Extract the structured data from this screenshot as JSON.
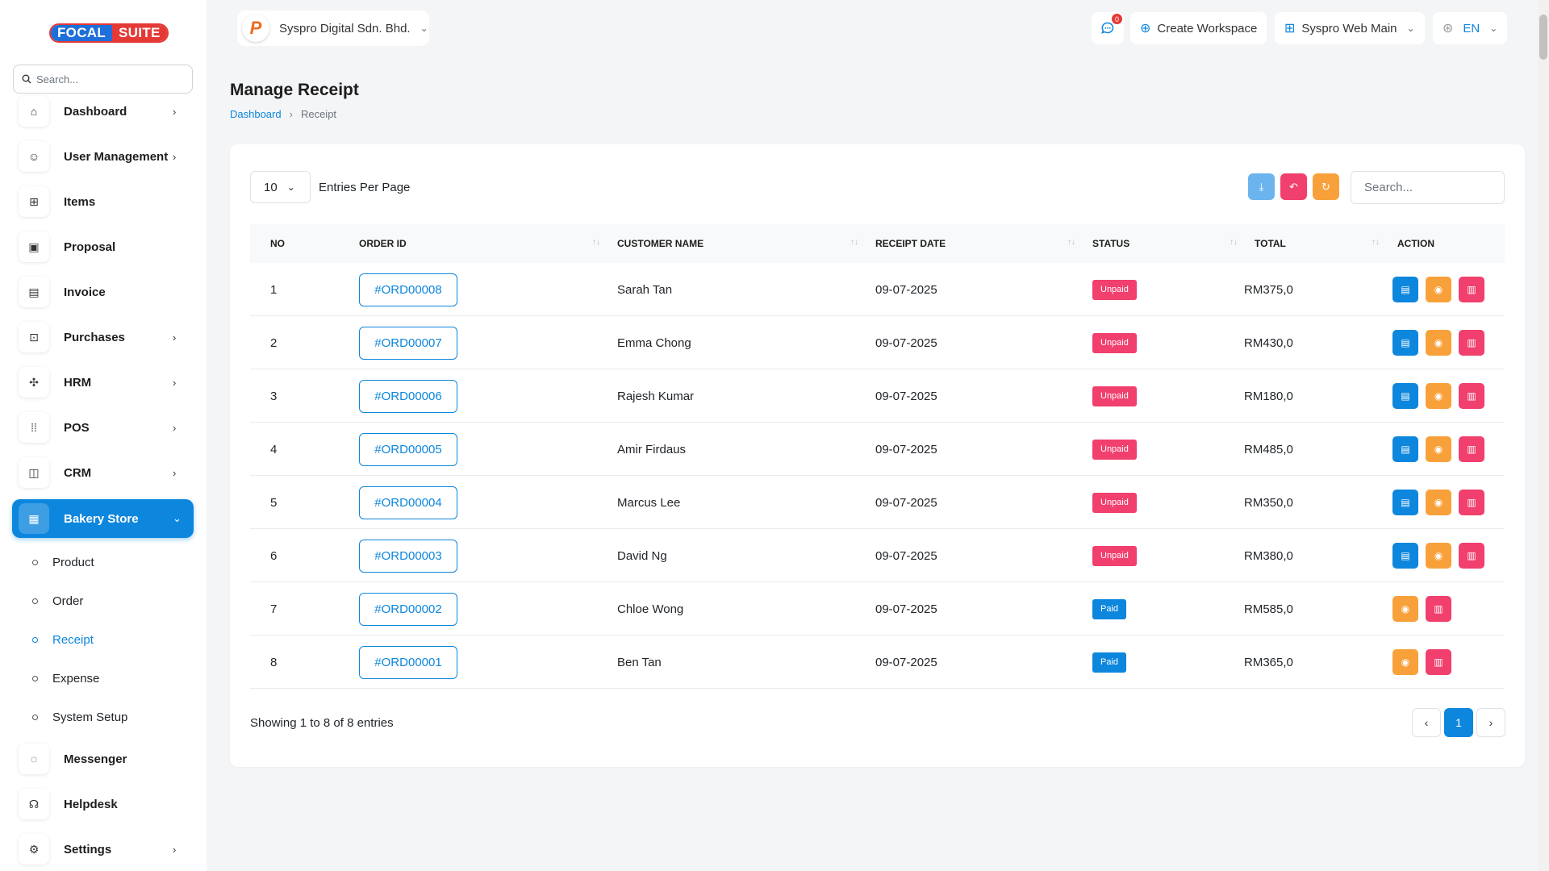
{
  "brand": {
    "part1": "FOCAL",
    "part2": "SUITE"
  },
  "sidebar": {
    "search_placeholder": "Search...",
    "items": [
      {
        "label": "Dashboard",
        "icon": "home-icon",
        "glyph": "⌂",
        "chevron": true
      },
      {
        "label": "User Management",
        "icon": "users-icon",
        "glyph": "☺",
        "chevron": true
      },
      {
        "label": "Items",
        "icon": "cart-icon",
        "glyph": "⊞",
        "chevron": false
      },
      {
        "label": "Proposal",
        "icon": "proposal-icon",
        "glyph": "▣",
        "chevron": false
      },
      {
        "label": "Invoice",
        "icon": "invoice-icon",
        "glyph": "▤",
        "chevron": false
      },
      {
        "label": "Purchases",
        "icon": "purchases-icon",
        "glyph": "⊡",
        "chevron": true
      },
      {
        "label": "HRM",
        "icon": "hrm-icon",
        "glyph": "✣",
        "chevron": true
      },
      {
        "label": "POS",
        "icon": "grid-icon",
        "glyph": "⁞⁞",
        "chevron": true
      },
      {
        "label": "CRM",
        "icon": "crm-icon",
        "glyph": "◫",
        "chevron": true
      },
      {
        "label": "Bakery Store",
        "icon": "store-icon",
        "glyph": "▦",
        "chevron": true,
        "active": true
      }
    ],
    "sub_items": [
      {
        "label": "Product"
      },
      {
        "label": "Order"
      },
      {
        "label": "Receipt",
        "active": true
      },
      {
        "label": "Expense"
      },
      {
        "label": "System Setup"
      }
    ],
    "bottom_items": [
      {
        "label": "Messenger",
        "icon": "message-icon",
        "glyph": "◌",
        "chevron": false
      },
      {
        "label": "Helpdesk",
        "icon": "headset-icon",
        "glyph": "☊",
        "chevron": false
      },
      {
        "label": "Settings",
        "icon": "gear-icon",
        "glyph": "⚙",
        "chevron": true
      }
    ]
  },
  "topbar": {
    "company": "Syspro Digital Sdn. Bhd.",
    "notification_count": "0",
    "create_workspace": "Create Workspace",
    "workspace": "Syspro Web Main",
    "language": "EN"
  },
  "page": {
    "title": "Manage Receipt",
    "breadcrumb": {
      "home": "Dashboard",
      "current": "Receipt"
    }
  },
  "table_controls": {
    "per_page": "10",
    "per_page_label": "Entries Per Page",
    "search_placeholder": "Search..."
  },
  "colors": {
    "primary": "#0d86dd",
    "export": "#6cb4ee",
    "reset": "#f13f6e",
    "refresh": "#f8a13b",
    "unpaid": "#f13f6e",
    "paid": "#0d86dd",
    "view": "#f8a13b",
    "delete": "#f13f6e"
  },
  "table": {
    "columns": [
      "NO",
      "ORDER ID",
      "CUSTOMER NAME",
      "RECEIPT DATE",
      "STATUS",
      "TOTAL",
      "ACTION"
    ],
    "rows": [
      {
        "no": "1",
        "order_id": "#ORD00008",
        "customer": "Sarah Tan",
        "date": "09-07-2025",
        "status": "Unpaid",
        "total": "RM375,0"
      },
      {
        "no": "2",
        "order_id": "#ORD00007",
        "customer": "Emma Chong",
        "date": "09-07-2025",
        "status": "Unpaid",
        "total": "RM430,0"
      },
      {
        "no": "3",
        "order_id": "#ORD00006",
        "customer": "Rajesh Kumar",
        "date": "09-07-2025",
        "status": "Unpaid",
        "total": "RM180,0"
      },
      {
        "no": "4",
        "order_id": "#ORD00005",
        "customer": "Amir Firdaus",
        "date": "09-07-2025",
        "status": "Unpaid",
        "total": "RM485,0"
      },
      {
        "no": "5",
        "order_id": "#ORD00004",
        "customer": "Marcus Lee",
        "date": "09-07-2025",
        "status": "Unpaid",
        "total": "RM350,0"
      },
      {
        "no": "6",
        "order_id": "#ORD00003",
        "customer": "David Ng",
        "date": "09-07-2025",
        "status": "Unpaid",
        "total": "RM380,0"
      },
      {
        "no": "7",
        "order_id": "#ORD00002",
        "customer": "Chloe Wong",
        "date": "09-07-2025",
        "status": "Paid",
        "total": "RM585,0"
      },
      {
        "no": "8",
        "order_id": "#ORD00001",
        "customer": "Ben Tan",
        "date": "09-07-2025",
        "status": "Paid",
        "total": "RM365,0"
      }
    ]
  },
  "footer": {
    "showing": "Showing 1 to 8 of 8 entries",
    "current_page": "1"
  }
}
